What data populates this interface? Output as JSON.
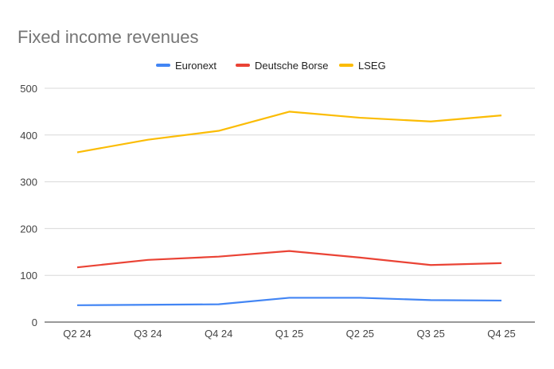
{
  "chart_data": {
    "type": "line",
    "title": "Fixed income revenues",
    "xlabel": "",
    "ylabel": "",
    "categories": [
      "Q2 24",
      "Q3 24",
      "Q4 24",
      "Q1 25",
      "Q2 25",
      "Q3 25",
      "Q4 25"
    ],
    "ylim": [
      0,
      500
    ],
    "yticks": [
      0,
      100,
      200,
      300,
      400,
      500
    ],
    "grid": true,
    "legend_position": "top",
    "series": [
      {
        "name": "Euronext",
        "color": "#4285f4",
        "values": [
          36,
          37,
          38,
          52,
          52,
          47,
          46
        ]
      },
      {
        "name": "Deutsche Borse",
        "color": "#ea4335",
        "values": [
          117,
          133,
          140,
          152,
          138,
          122,
          126
        ]
      },
      {
        "name": "LSEG",
        "color": "#fbbc04",
        "values": [
          363,
          390,
          409,
          450,
          437,
          429,
          442
        ]
      }
    ]
  }
}
